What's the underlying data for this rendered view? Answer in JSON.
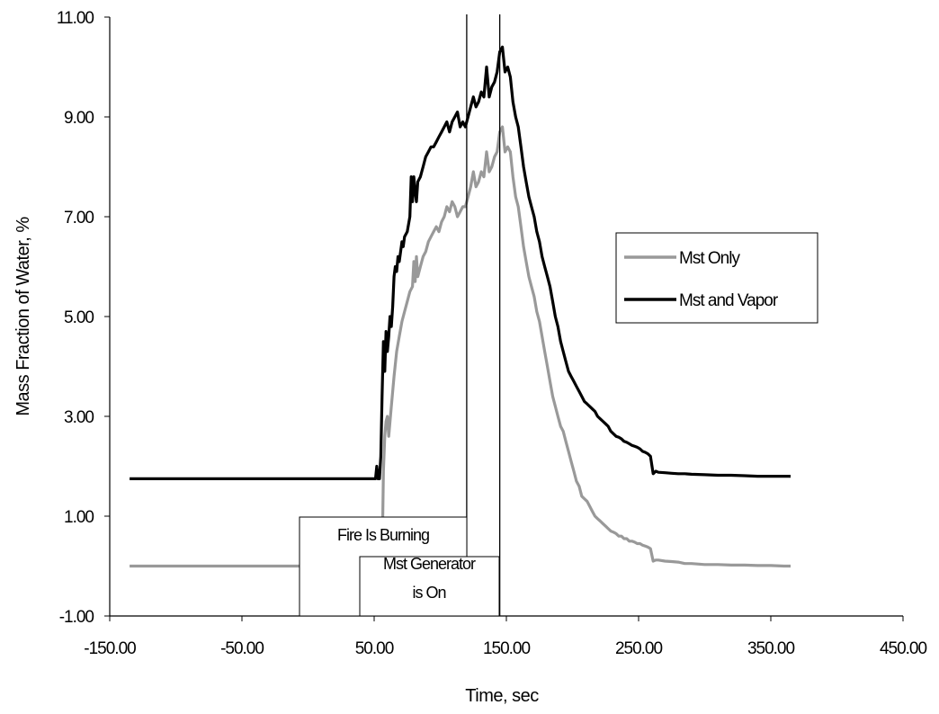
{
  "chart_data": {
    "type": "line",
    "xlabel": "Time, sec",
    "ylabel": "Mass Fraction of Water, %",
    "xlim": [
      -150,
      450
    ],
    "ylim": [
      -1,
      11
    ],
    "x_ticks": [
      -150,
      -50,
      50,
      150,
      250,
      350,
      450
    ],
    "y_ticks": [
      -1,
      1,
      3,
      5,
      7,
      9,
      11
    ],
    "x_tick_labels": [
      "-150.00",
      "-50.00",
      "50.00",
      "150.00",
      "250.00",
      "350.00",
      "450.00"
    ],
    "y_tick_labels": [
      "-1.00",
      "1.00",
      "3.00",
      "5.00",
      "7.00",
      "9.00",
      "11.00"
    ],
    "grid": false,
    "legend_position": "right",
    "series": [
      {
        "name": "Mst Only",
        "color": "#999999",
        "points": [
          [
            -135,
            0
          ],
          [
            -75,
            0
          ],
          [
            0,
            0
          ],
          [
            55,
            0
          ],
          [
            56,
            0.05
          ],
          [
            57,
            1.9
          ],
          [
            58,
            2.6
          ],
          [
            59,
            2.9
          ],
          [
            60,
            3.0
          ],
          [
            61,
            2.6
          ],
          [
            63,
            3.2
          ],
          [
            65,
            3.8
          ],
          [
            67,
            4.3
          ],
          [
            69,
            4.6
          ],
          [
            71,
            4.9
          ],
          [
            73,
            5.1
          ],
          [
            75,
            5.3
          ],
          [
            77,
            5.5
          ],
          [
            79,
            5.6
          ],
          [
            80,
            6.1
          ],
          [
            81,
            5.7
          ],
          [
            82,
            6.2
          ],
          [
            83,
            5.8
          ],
          [
            85,
            6.0
          ],
          [
            87,
            6.2
          ],
          [
            89,
            6.3
          ],
          [
            91,
            6.5
          ],
          [
            93,
            6.6
          ],
          [
            95,
            6.7
          ],
          [
            97,
            6.8
          ],
          [
            99,
            6.7
          ],
          [
            101,
            6.9
          ],
          [
            103,
            7.0
          ],
          [
            105,
            7.2
          ],
          [
            107,
            7.1
          ],
          [
            109,
            7.3
          ],
          [
            111,
            7.2
          ],
          [
            113,
            7.0
          ],
          [
            115,
            7.1
          ],
          [
            117,
            7.2
          ],
          [
            119,
            7.2
          ],
          [
            121,
            7.4
          ],
          [
            123,
            7.6
          ],
          [
            125,
            7.9
          ],
          [
            127,
            7.6
          ],
          [
            129,
            7.7
          ],
          [
            131,
            7.9
          ],
          [
            133,
            7.8
          ],
          [
            135,
            8.3
          ],
          [
            137,
            7.9
          ],
          [
            139,
            8.0
          ],
          [
            141,
            8.2
          ],
          [
            143,
            8.3
          ],
          [
            145,
            8.7
          ],
          [
            147,
            8.8
          ],
          [
            149,
            8.3
          ],
          [
            151,
            8.4
          ],
          [
            153,
            8.3
          ],
          [
            155,
            7.8
          ],
          [
            157,
            7.4
          ],
          [
            159,
            7.2
          ],
          [
            161,
            6.8
          ],
          [
            163,
            6.4
          ],
          [
            165,
            6.1
          ],
          [
            167,
            5.8
          ],
          [
            169,
            5.6
          ],
          [
            171,
            5.4
          ],
          [
            173,
            5.1
          ],
          [
            175,
            4.9
          ],
          [
            177,
            4.6
          ],
          [
            179,
            4.3
          ],
          [
            181,
            4.0
          ],
          [
            183,
            3.7
          ],
          [
            185,
            3.4
          ],
          [
            187,
            3.2
          ],
          [
            189,
            3.0
          ],
          [
            191,
            2.8
          ],
          [
            193,
            2.7
          ],
          [
            195,
            2.5
          ],
          [
            197,
            2.3
          ],
          [
            199,
            2.1
          ],
          [
            201,
            1.9
          ],
          [
            203,
            1.7
          ],
          [
            205,
            1.6
          ],
          [
            207,
            1.4
          ],
          [
            209,
            1.35
          ],
          [
            211,
            1.3
          ],
          [
            213,
            1.2
          ],
          [
            215,
            1.1
          ],
          [
            217,
            1.0
          ],
          [
            219,
            0.95
          ],
          [
            221,
            0.9
          ],
          [
            223,
            0.85
          ],
          [
            225,
            0.8
          ],
          [
            227,
            0.75
          ],
          [
            229,
            0.7
          ],
          [
            231,
            0.68
          ],
          [
            233,
            0.65
          ],
          [
            235,
            0.6
          ],
          [
            237,
            0.6
          ],
          [
            239,
            0.55
          ],
          [
            241,
            0.55
          ],
          [
            243,
            0.5
          ],
          [
            245,
            0.5
          ],
          [
            247,
            0.48
          ],
          [
            249,
            0.45
          ],
          [
            251,
            0.45
          ],
          [
            253,
            0.42
          ],
          [
            255,
            0.4
          ],
          [
            257,
            0.38
          ],
          [
            259,
            0.35
          ],
          [
            261,
            0.1
          ],
          [
            263,
            0.12
          ],
          [
            265,
            0.12
          ],
          [
            270,
            0.1
          ],
          [
            275,
            0.09
          ],
          [
            280,
            0.08
          ],
          [
            285,
            0.05
          ],
          [
            290,
            0.05
          ],
          [
            300,
            0.03
          ],
          [
            310,
            0.03
          ],
          [
            320,
            0.02
          ],
          [
            330,
            0.02
          ],
          [
            340,
            0.01
          ],
          [
            350,
            0.01
          ],
          [
            360,
            0
          ],
          [
            365,
            0
          ]
        ]
      },
      {
        "name": "Mst and Vapor",
        "color": "#000000",
        "points": [
          [
            -135,
            1.75
          ],
          [
            -75,
            1.75
          ],
          [
            0,
            1.75
          ],
          [
            50,
            1.75
          ],
          [
            51,
            1.75
          ],
          [
            52,
            2.0
          ],
          [
            53,
            1.75
          ],
          [
            54,
            1.75
          ],
          [
            55,
            2.2
          ],
          [
            56,
            3.4
          ],
          [
            57,
            4.5
          ],
          [
            58,
            3.9
          ],
          [
            59,
            4.7
          ],
          [
            60,
            4.3
          ],
          [
            61,
            4.6
          ],
          [
            62,
            5.0
          ],
          [
            63,
            4.8
          ],
          [
            64,
            5.2
          ],
          [
            65,
            5.8
          ],
          [
            66,
            6.0
          ],
          [
            67,
            5.9
          ],
          [
            68,
            6.2
          ],
          [
            69,
            6.1
          ],
          [
            70,
            6.3
          ],
          [
            71,
            6.5
          ],
          [
            72,
            6.4
          ],
          [
            73,
            6.6
          ],
          [
            75,
            6.7
          ],
          [
            77,
            7.0
          ],
          [
            78,
            7.8
          ],
          [
            79,
            7.3
          ],
          [
            80,
            7.8
          ],
          [
            81,
            7.5
          ],
          [
            82,
            7.3
          ],
          [
            83,
            7.7
          ],
          [
            85,
            7.8
          ],
          [
            87,
            8.0
          ],
          [
            89,
            8.2
          ],
          [
            91,
            8.3
          ],
          [
            93,
            8.4
          ],
          [
            95,
            8.4
          ],
          [
            97,
            8.5
          ],
          [
            99,
            8.6
          ],
          [
            101,
            8.7
          ],
          [
            103,
            8.8
          ],
          [
            105,
            8.9
          ],
          [
            107,
            8.7
          ],
          [
            109,
            8.9
          ],
          [
            111,
            9.0
          ],
          [
            113,
            9.1
          ],
          [
            115,
            8.8
          ],
          [
            117,
            8.9
          ],
          [
            119,
            8.8
          ],
          [
            121,
            9.0
          ],
          [
            123,
            9.2
          ],
          [
            125,
            9.4
          ],
          [
            127,
            9.2
          ],
          [
            129,
            9.3
          ],
          [
            131,
            9.5
          ],
          [
            133,
            9.4
          ],
          [
            135,
            10.0
          ],
          [
            137,
            9.4
          ],
          [
            139,
            9.6
          ],
          [
            141,
            9.7
          ],
          [
            143,
            9.9
          ],
          [
            145,
            10.3
          ],
          [
            147,
            10.4
          ],
          [
            149,
            9.9
          ],
          [
            151,
            10.0
          ],
          [
            153,
            9.8
          ],
          [
            155,
            9.3
          ],
          [
            157,
            9.0
          ],
          [
            159,
            8.8
          ],
          [
            161,
            8.4
          ],
          [
            163,
            8.0
          ],
          [
            165,
            7.7
          ],
          [
            167,
            7.4
          ],
          [
            169,
            7.2
          ],
          [
            171,
            7.0
          ],
          [
            173,
            6.7
          ],
          [
            175,
            6.5
          ],
          [
            177,
            6.2
          ],
          [
            179,
            6.0
          ],
          [
            181,
            5.8
          ],
          [
            183,
            5.6
          ],
          [
            185,
            5.3
          ],
          [
            187,
            5.0
          ],
          [
            189,
            4.8
          ],
          [
            191,
            4.5
          ],
          [
            193,
            4.3
          ],
          [
            195,
            4.1
          ],
          [
            197,
            3.9
          ],
          [
            199,
            3.8
          ],
          [
            201,
            3.7
          ],
          [
            203,
            3.6
          ],
          [
            205,
            3.5
          ],
          [
            207,
            3.4
          ],
          [
            209,
            3.3
          ],
          [
            211,
            3.25
          ],
          [
            213,
            3.2
          ],
          [
            215,
            3.15
          ],
          [
            217,
            3.1
          ],
          [
            219,
            3.0
          ],
          [
            221,
            2.95
          ],
          [
            223,
            2.9
          ],
          [
            225,
            2.85
          ],
          [
            227,
            2.8
          ],
          [
            229,
            2.7
          ],
          [
            231,
            2.65
          ],
          [
            233,
            2.6
          ],
          [
            235,
            2.58
          ],
          [
            237,
            2.55
          ],
          [
            239,
            2.5
          ],
          [
            241,
            2.48
          ],
          [
            243,
            2.45
          ],
          [
            245,
            2.42
          ],
          [
            247,
            2.4
          ],
          [
            249,
            2.38
          ],
          [
            251,
            2.35
          ],
          [
            253,
            2.3
          ],
          [
            255,
            2.28
          ],
          [
            257,
            2.25
          ],
          [
            259,
            2.2
          ],
          [
            261,
            1.85
          ],
          [
            263,
            1.9
          ],
          [
            265,
            1.88
          ],
          [
            270,
            1.87
          ],
          [
            275,
            1.86
          ],
          [
            280,
            1.85
          ],
          [
            285,
            1.85
          ],
          [
            290,
            1.84
          ],
          [
            300,
            1.83
          ],
          [
            310,
            1.82
          ],
          [
            320,
            1.82
          ],
          [
            330,
            1.81
          ],
          [
            340,
            1.8
          ],
          [
            350,
            1.8
          ],
          [
            360,
            1.8
          ],
          [
            365,
            1.8
          ]
        ]
      }
    ],
    "annotations": [
      {
        "text_lines": [
          "Fire Is Burning"
        ],
        "marker_x": 120
      },
      {
        "text_lines": [
          "Mst Generator",
          "is On"
        ],
        "marker_x": 145
      }
    ]
  }
}
